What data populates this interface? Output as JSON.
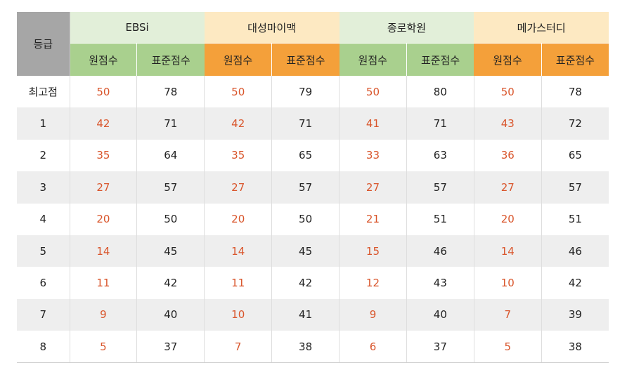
{
  "table": {
    "grade_header": "등급",
    "providers": [
      "EBSi",
      "대성마이맥",
      "종로학원",
      "메가스터디"
    ],
    "raw_label": "원점수",
    "std_label": "표준점수",
    "rows": [
      {
        "grade": "최고점",
        "cells": [
          "50",
          "78",
          "50",
          "79",
          "50",
          "80",
          "50",
          "78"
        ]
      },
      {
        "grade": "1",
        "cells": [
          "42",
          "71",
          "42",
          "71",
          "41",
          "71",
          "43",
          "72"
        ]
      },
      {
        "grade": "2",
        "cells": [
          "35",
          "64",
          "35",
          "65",
          "33",
          "63",
          "36",
          "65"
        ]
      },
      {
        "grade": "3",
        "cells": [
          "27",
          "57",
          "27",
          "57",
          "27",
          "57",
          "27",
          "57"
        ]
      },
      {
        "grade": "4",
        "cells": [
          "20",
          "50",
          "20",
          "50",
          "21",
          "51",
          "20",
          "51"
        ]
      },
      {
        "grade": "5",
        "cells": [
          "14",
          "45",
          "14",
          "45",
          "15",
          "46",
          "14",
          "46"
        ]
      },
      {
        "grade": "6",
        "cells": [
          "11",
          "42",
          "11",
          "42",
          "12",
          "43",
          "10",
          "42"
        ]
      },
      {
        "grade": "7",
        "cells": [
          "9",
          "40",
          "10",
          "41",
          "9",
          "40",
          "7",
          "39"
        ]
      },
      {
        "grade": "8",
        "cells": [
          "5",
          "37",
          "7",
          "38",
          "6",
          "37",
          "5",
          "38"
        ]
      }
    ]
  },
  "colors": {
    "ebsi_header": "#e2efd9",
    "daesung_header": "#fde9c2",
    "jongro_header": "#e2efd9",
    "mega_header": "#fde9c2",
    "green_sub": "#a9d08e",
    "orange_sub": "#f4a03a",
    "raw_score_text": "#d9552b",
    "grade_header_bg": "#a6a6a6"
  }
}
